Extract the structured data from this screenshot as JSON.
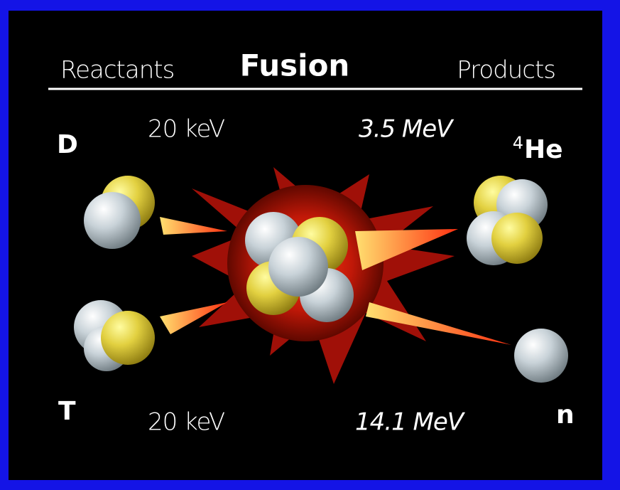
{
  "header": {
    "left": "Reactants",
    "title": "Fusion",
    "right": "Products"
  },
  "reactants": [
    {
      "symbol": "D",
      "energy": "20 keV"
    },
    {
      "symbol": "T",
      "energy": "20 keV"
    }
  ],
  "products": [
    {
      "mass_number": "4",
      "symbol": "He",
      "energy": "3.5 MeV"
    },
    {
      "symbol": "n",
      "energy": "14.1 MeV"
    }
  ]
}
